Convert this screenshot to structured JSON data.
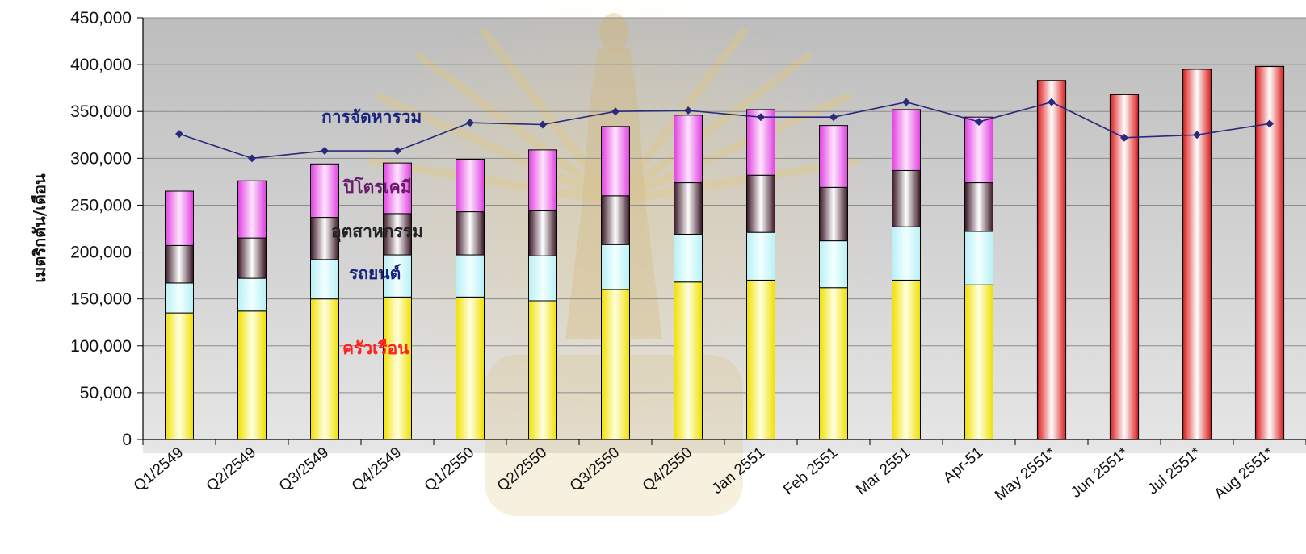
{
  "chart_data": {
    "type": "bar",
    "title": "",
    "xlabel": "",
    "ylabel": "เมตริกตัน/เดือน",
    "ylim": [
      0,
      450000
    ],
    "yticks": [
      0,
      50000,
      100000,
      150000,
      200000,
      250000,
      300000,
      350000,
      400000,
      450000
    ],
    "ytick_labels": [
      "0",
      "50,000",
      "100,000",
      "150,000",
      "200,000",
      "250,000",
      "300,000",
      "350,000",
      "400,000",
      "450,000"
    ],
    "grid": true,
    "categories": [
      "Q1/2549",
      "Q2/2549",
      "Q3/2549",
      "Q4/2549",
      "Q1/2550",
      "Q2/2550",
      "Q3/2550",
      "Q4/2550",
      "Jan 2551",
      "Feb 2551",
      "Mar 2551",
      "Apr-51",
      "May 2551*",
      "Jun 2551*",
      "Jul 2551*",
      "Aug 2551*"
    ],
    "stacked_series": [
      {
        "name": "ครัวเรือน",
        "label_color": "#ff2020",
        "fill_edge": "#f0e000",
        "fill_mid": "#ffffe0",
        "values": [
          135000,
          137000,
          150000,
          152000,
          152000,
          148000,
          160000,
          168000,
          170000,
          162000,
          170000,
          165000,
          null,
          null,
          null,
          null
        ]
      },
      {
        "name": "รถยนต์",
        "label_color": "#1a237e",
        "fill_edge": "#b8f0f6",
        "fill_mid": "#f2ffff",
        "values": [
          32000,
          35000,
          42000,
          45000,
          45000,
          48000,
          48000,
          51000,
          51000,
          50000,
          57000,
          57000,
          null,
          null,
          null,
          null
        ]
      },
      {
        "name": "อุตสาหกรรม",
        "label_color": "#222222",
        "fill_edge": "#3a1525",
        "fill_mid": "#ffffff",
        "values": [
          40000,
          43000,
          45000,
          44000,
          46000,
          48000,
          52000,
          55000,
          61000,
          57000,
          60000,
          52000,
          null,
          null,
          null,
          null
        ]
      },
      {
        "name": "ปิโตรเคมี",
        "label_color": "#6a1b6a",
        "fill_edge": "#e040e0",
        "fill_mid": "#ffe4ff",
        "values": [
          58000,
          61000,
          57000,
          54000,
          56000,
          65000,
          74000,
          72000,
          70000,
          66000,
          65000,
          70000,
          null,
          null,
          null,
          null
        ]
      }
    ],
    "forecast_series": {
      "fill_edge": "#dd1a1a",
      "fill_mid": "#ffffff",
      "values": [
        null,
        null,
        null,
        null,
        null,
        null,
        null,
        null,
        null,
        null,
        null,
        null,
        383000,
        368000,
        395000,
        398000
      ]
    },
    "line_series": {
      "name": "การจัดหารวม",
      "color": "#2a2a7a",
      "label_color": "#1a237e",
      "values": [
        326000,
        300000,
        308000,
        308000,
        338000,
        336000,
        350000,
        351000,
        344000,
        344000,
        360000,
        339000,
        360000,
        322000,
        325000,
        337000
      ]
    },
    "colors": {
      "plot_top": "#bdbdbd",
      "plot_bottom": "#e6e6e6",
      "grid": "#8c8c8c",
      "bar_stroke": "#000000"
    }
  }
}
